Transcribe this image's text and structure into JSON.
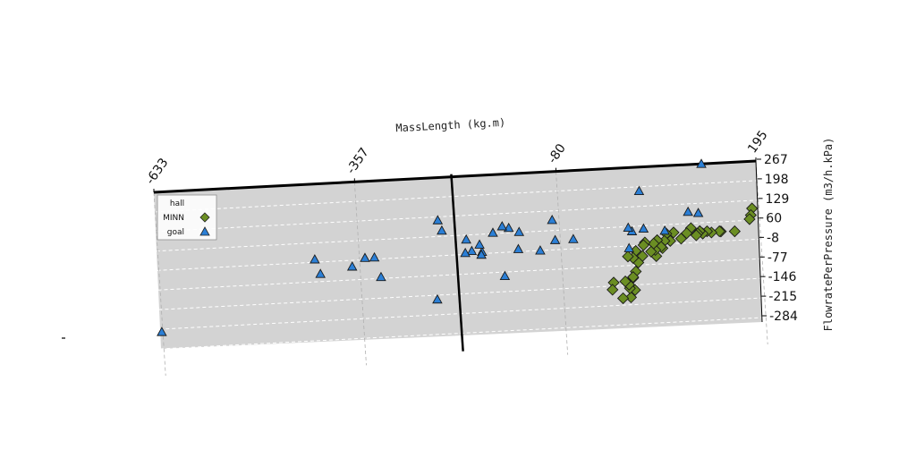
{
  "chart_data": {
    "type": "scatter",
    "xlabel": "MassLength (kg.m)",
    "ylabel": "FlowratePerPressure (m3/h.kPa)",
    "x_ticks": [
      "-633",
      "-357",
      "-80",
      "195"
    ],
    "y_ticks": [
      "267",
      "198",
      "129",
      "60",
      "-8",
      "-77",
      "-146",
      "-215",
      "-284"
    ],
    "xlim": [
      -633,
      195
    ],
    "ylim": [
      -284,
      267
    ],
    "grid": true,
    "vertical_reference_line_x": -224,
    "legend": {
      "title": "hall",
      "position": "top-left"
    },
    "series": [
      {
        "name": "MINN",
        "marker": "diamond",
        "color": "#6b8e23",
        "points": [
          [
            187,
            101
          ],
          [
            185,
            78
          ],
          [
            183,
            64
          ],
          [
            162,
            24
          ],
          [
            143,
            26
          ],
          [
            141,
            27
          ],
          [
            130,
            24
          ],
          [
            124,
            29
          ],
          [
            118,
            22
          ],
          [
            114,
            31
          ],
          [
            111,
            23
          ],
          [
            109,
            17
          ],
          [
            102,
            43
          ],
          [
            96,
            26
          ],
          [
            88,
            8
          ],
          [
            78,
            31
          ],
          [
            73,
            2
          ],
          [
            68,
            28
          ],
          [
            65,
            3
          ],
          [
            62,
            -22
          ],
          [
            60,
            -17
          ],
          [
            55,
            7
          ],
          [
            53,
            -49
          ],
          [
            52,
            -27
          ],
          [
            50,
            -4
          ],
          [
            46,
            -32
          ],
          [
            38,
            1
          ],
          [
            36,
            -8
          ],
          [
            34,
            -46
          ],
          [
            28,
            -68
          ],
          [
            25,
            -27
          ],
          [
            24,
            -99
          ],
          [
            22,
            -164
          ],
          [
            21,
            -51
          ],
          [
            20,
            -121
          ],
          [
            20,
            -118
          ],
          [
            16,
            -189
          ],
          [
            15,
            -157
          ],
          [
            14,
            -144
          ],
          [
            14,
            -45
          ],
          [
            9,
            -132
          ],
          [
            5,
            -191
          ],
          [
            -7,
            -134
          ],
          [
            -9,
            -159
          ]
        ]
      },
      {
        "name": "goal",
        "marker": "triangle",
        "color": "#2b7fd6",
        "points": [
          [
            120,
            267
          ],
          [
            113,
            95
          ],
          [
            99,
            101
          ],
          [
            66,
            39
          ],
          [
            37,
            50
          ],
          [
            33,
            183
          ],
          [
            21,
            43
          ],
          [
            16,
            -16
          ],
          [
            16,
            56
          ],
          [
            -60,
            26
          ],
          [
            -85,
            26
          ],
          [
            -88,
            97
          ],
          [
            -106,
            -8
          ],
          [
            -134,
            61
          ],
          [
            -136,
            1
          ],
          [
            -148,
            77
          ],
          [
            -156,
            -91
          ],
          [
            -157,
            84
          ],
          [
            -170,
            63
          ],
          [
            -186,
            -2
          ],
          [
            -187,
            -12
          ],
          [
            -189,
            24
          ],
          [
            -200,
            3
          ],
          [
            -207,
            44
          ],
          [
            -209,
            -3
          ],
          [
            -240,
            80
          ],
          [
            -245,
            117
          ],
          [
            -250,
            -161
          ],
          [
            -326,
            -72
          ],
          [
            -334,
            -2
          ],
          [
            -347,
            -2
          ],
          [
            -365,
            -30
          ],
          [
            -409,
            -50
          ],
          [
            -416,
            2
          ],
          [
            -630,
            -225
          ]
        ]
      }
    ]
  }
}
